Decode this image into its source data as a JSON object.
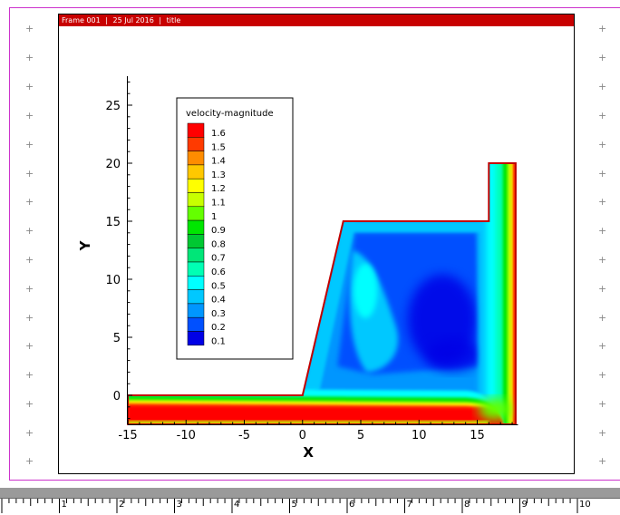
{
  "frame": {
    "header_parts": [
      "Frame 001",
      "|",
      "25 Jul 2016",
      "|",
      "title"
    ]
  },
  "chart_data": {
    "type": "contour",
    "xlabel": "X",
    "ylabel": "Y",
    "xlim": [
      -15,
      18.5
    ],
    "ylim": [
      -2.5,
      27.5
    ],
    "xticks": [
      -15,
      -10,
      -5,
      0,
      5,
      10,
      15
    ],
    "yticks": [
      0,
      5,
      10,
      15,
      20,
      25
    ],
    "legend": {
      "title": "velocity-magnitude",
      "placement": "top-left",
      "levels": [
        1.6,
        1.5,
        1.4,
        1.3,
        1.2,
        1.1,
        1,
        0.9,
        0.8,
        0.7,
        0.6,
        0.5,
        0.4,
        0.3,
        0.2,
        0.1
      ],
      "colors": [
        "#ff0000",
        "#ff3a00",
        "#ff8c00",
        "#ffc800",
        "#ffff00",
        "#c8ff00",
        "#64ff00",
        "#00e600",
        "#00c832",
        "#00e678",
        "#00ffb4",
        "#00ffff",
        "#00c8ff",
        "#0096ff",
        "#0050ff",
        "#0000e6"
      ]
    },
    "domain_outline": [
      [
        -15,
        0
      ],
      [
        0,
        0
      ],
      [
        3.5,
        15
      ],
      [
        16,
        15
      ],
      [
        16,
        20
      ],
      [
        18.3,
        20
      ],
      [
        18.3,
        -2.5
      ],
      [
        -15,
        -2.5
      ]
    ]
  },
  "ruler": {
    "labels": [
      "1",
      "2",
      "3",
      "4",
      "5",
      "6",
      "7",
      "8",
      "9",
      "10"
    ]
  }
}
